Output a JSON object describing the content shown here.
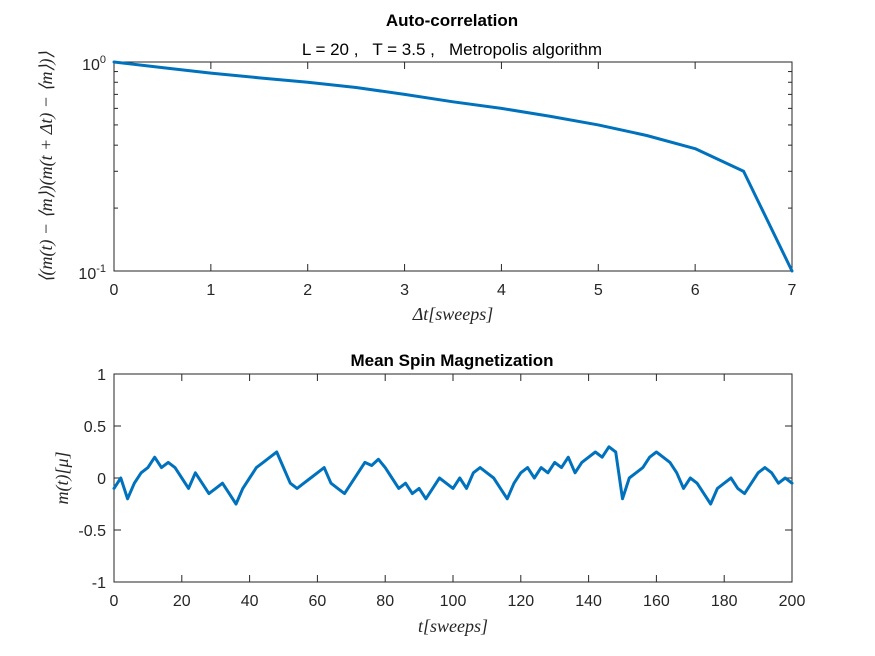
{
  "chart_data": [
    {
      "type": "line",
      "title": "Auto-correlation",
      "subtitle": "L = 20 ,   T = 3.5 ,   Metropolis algorithm",
      "xlabel": "Δt[sweeps]",
      "ylabel": "⟨(m(t) − ⟨m⟩)(m(t + Δt) − ⟨m⟩)⟩",
      "yscale": "log",
      "xlim": [
        0,
        7
      ],
      "ylim": [
        0.1,
        1
      ],
      "xticks": [
        0,
        1,
        2,
        3,
        4,
        5,
        6,
        7
      ],
      "xtick_labels": [
        "0",
        "1",
        "2",
        "3",
        "4",
        "5",
        "6",
        "7"
      ],
      "yticks": [
        0.1,
        1
      ],
      "ytick_labels": [
        {
          "base": "10",
          "exp": "-1"
        },
        {
          "base": "10",
          "exp": "0"
        }
      ],
      "grid": false,
      "color": "#0072BD",
      "series": [
        {
          "x": [
            0,
            0.5,
            1,
            1.5,
            2,
            2.5,
            3,
            3.5,
            4,
            4.5,
            5,
            5.5,
            6,
            6.5,
            7
          ],
          "values": [
            1.0,
            0.94,
            0.885,
            0.84,
            0.8,
            0.755,
            0.7,
            0.645,
            0.6,
            0.55,
            0.5,
            0.445,
            0.385,
            0.3,
            0.1
          ]
        }
      ]
    },
    {
      "type": "line",
      "title": "Mean Spin Magnetization",
      "xlabel": "t[sweeps]",
      "ylabel": "m(t)[μ]",
      "xlim": [
        0,
        200
      ],
      "ylim": [
        -1,
        1
      ],
      "xticks": [
        0,
        20,
        40,
        60,
        80,
        100,
        120,
        140,
        160,
        180,
        200
      ],
      "xtick_labels": [
        "0",
        "20",
        "40",
        "60",
        "80",
        "100",
        "120",
        "140",
        "160",
        "180",
        "200"
      ],
      "yticks": [
        -1,
        -0.5,
        0,
        0.5,
        1
      ],
      "ytick_labels": [
        "-1",
        "-0.5",
        "0",
        "0.5",
        "1"
      ],
      "grid": false,
      "color": "#0072BD",
      "series": [
        {
          "x": [
            0,
            2,
            4,
            6,
            8,
            10,
            12,
            14,
            16,
            18,
            20,
            22,
            24,
            26,
            28,
            30,
            32,
            34,
            36,
            38,
            40,
            42,
            44,
            46,
            48,
            50,
            52,
            54,
            56,
            58,
            60,
            62,
            64,
            66,
            68,
            70,
            72,
            74,
            76,
            78,
            80,
            82,
            84,
            86,
            88,
            90,
            92,
            94,
            96,
            98,
            100,
            102,
            104,
            106,
            108,
            110,
            112,
            114,
            116,
            118,
            120,
            122,
            124,
            126,
            128,
            130,
            132,
            134,
            136,
            138,
            140,
            142,
            144,
            146,
            148,
            150,
            152,
            154,
            156,
            158,
            160,
            162,
            164,
            166,
            168,
            170,
            172,
            174,
            176,
            178,
            180,
            182,
            184,
            186,
            188,
            190,
            192,
            194,
            196,
            198,
            200
          ],
          "values": [
            -0.1,
            0.0,
            -0.2,
            -0.05,
            0.05,
            0.1,
            0.2,
            0.1,
            0.15,
            0.1,
            0.0,
            -0.1,
            0.05,
            -0.05,
            -0.15,
            -0.1,
            -0.05,
            -0.15,
            -0.25,
            -0.1,
            0.0,
            0.1,
            0.15,
            0.2,
            0.25,
            0.1,
            -0.05,
            -0.1,
            -0.05,
            0.0,
            0.05,
            0.1,
            -0.05,
            -0.1,
            -0.15,
            -0.05,
            0.05,
            0.15,
            0.12,
            0.18,
            0.1,
            0.0,
            -0.1,
            -0.05,
            -0.15,
            -0.1,
            -0.2,
            -0.1,
            0.0,
            -0.05,
            -0.1,
            0.0,
            -0.1,
            0.05,
            0.1,
            0.05,
            0.0,
            -0.1,
            -0.2,
            -0.05,
            0.05,
            0.1,
            0.0,
            0.1,
            0.05,
            0.15,
            0.1,
            0.2,
            0.05,
            0.15,
            0.2,
            0.25,
            0.2,
            0.3,
            0.25,
            -0.2,
            0.0,
            0.05,
            0.1,
            0.2,
            0.25,
            0.2,
            0.15,
            0.05,
            -0.1,
            0.0,
            -0.05,
            -0.15,
            -0.25,
            -0.1,
            -0.05,
            0.0,
            -0.1,
            -0.15,
            -0.05,
            0.05,
            0.1,
            0.05,
            -0.05,
            0.0,
            -0.05
          ]
        }
      ]
    }
  ]
}
